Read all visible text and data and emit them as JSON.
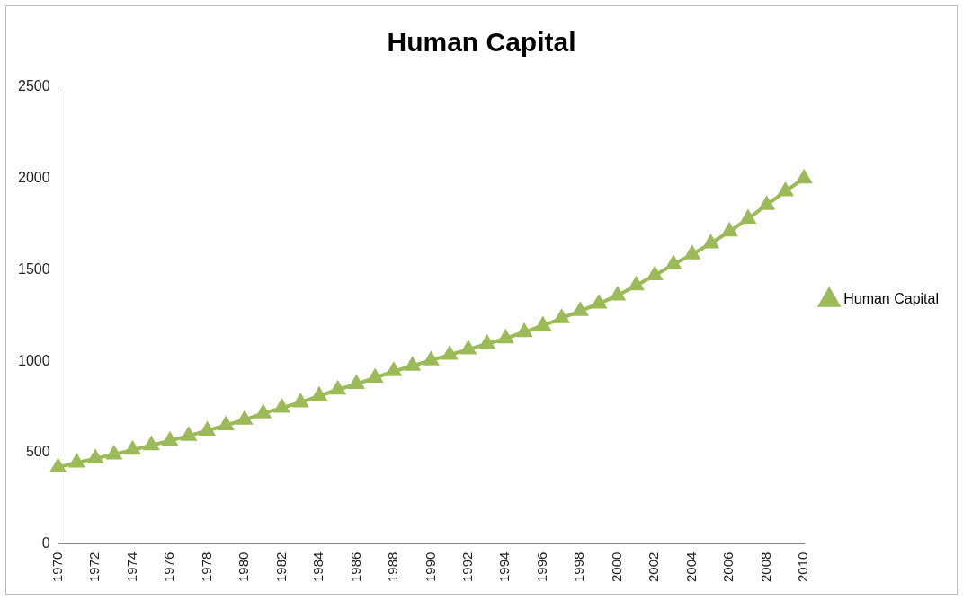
{
  "chart_data": {
    "type": "line",
    "title": "Human Capital",
    "categories": [
      "1970",
      null,
      "1972",
      null,
      "1974",
      null,
      "1976",
      null,
      "1978",
      null,
      "1980",
      null,
      "1982",
      null,
      "1984",
      null,
      "1986",
      null,
      "1988",
      null,
      "1990",
      null,
      "1992",
      null,
      "1994",
      null,
      "1996",
      null,
      "1998",
      null,
      "2000",
      null,
      "2002",
      null,
      "2004",
      null,
      "2006",
      null,
      "2008",
      null,
      "2010"
    ],
    "series": [
      {
        "name": "Human Capital",
        "color": "#9bbb59",
        "values": [
          420,
          445,
          468,
          490,
          515,
          540,
          565,
          592,
          620,
          650,
          680,
          715,
          745,
          775,
          810,
          845,
          875,
          910,
          945,
          975,
          1005,
          1035,
          1065,
          1095,
          1125,
          1160,
          1195,
          1235,
          1275,
          1315,
          1360,
          1415,
          1470,
          1530,
          1585,
          1645,
          1710,
          1780,
          1855,
          1930,
          2000
        ]
      }
    ],
    "ylim": [
      0,
      2500
    ],
    "yticks": [
      0,
      500,
      1000,
      1500,
      2000,
      2500
    ],
    "grid": false,
    "legend": "right",
    "marker": "triangle",
    "line_style": "solid"
  }
}
